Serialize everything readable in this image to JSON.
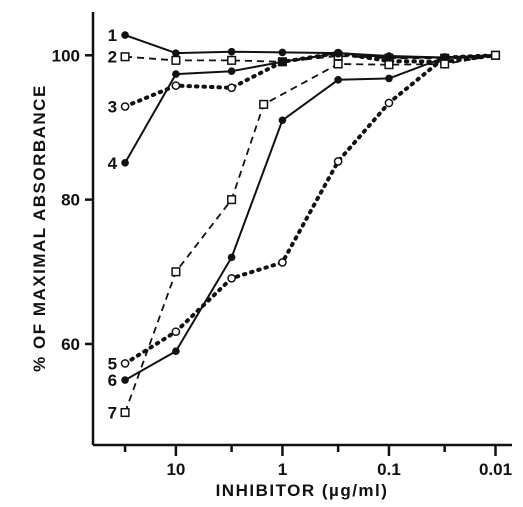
{
  "chart_data": {
    "type": "line",
    "title": "",
    "xlabel": "INHIBITOR (µg/ml)",
    "ylabel": "% OF MAXIMAL ABSORBANCE",
    "x_scale": "log",
    "x_reversed": true,
    "xlim": [
      60,
      0.007
    ],
    "ylim": [
      46,
      106
    ],
    "x_ticks": [
      {
        "value": 10,
        "label": "10"
      },
      {
        "value": 1,
        "label": "1"
      },
      {
        "value": 0.1,
        "label": "0.1"
      },
      {
        "value": 0.01,
        "label": "0.01"
      }
    ],
    "y_ticks": [
      {
        "value": 60,
        "label": "60"
      },
      {
        "value": 80,
        "label": "80"
      },
      {
        "value": 100,
        "label": "100"
      }
    ],
    "grid": false,
    "legend": "none",
    "series": [
      {
        "name": "1",
        "line": "solid",
        "marker": "filled-circle",
        "x": [
          30,
          10,
          3,
          1,
          0.3,
          0.1,
          0.03,
          0.01
        ],
        "y": [
          102.8,
          100.3,
          100.5,
          100.4,
          100.3,
          99.9,
          99.7,
          100
        ]
      },
      {
        "name": "2",
        "line": "dashed",
        "marker": "open-square",
        "x": [
          30,
          10,
          3,
          1,
          0.3,
          0.1,
          0.03,
          0.01
        ],
        "y": [
          99.8,
          99.3,
          99.3,
          99.1,
          99.9,
          99.6,
          99.6,
          100
        ]
      },
      {
        "name": "3",
        "line": "dotted",
        "marker": "open-circle",
        "x": [
          30,
          10,
          3,
          1,
          0.3,
          0.1,
          0.03,
          0.01
        ],
        "y": [
          92.9,
          95.8,
          95.5,
          99.1,
          100.3,
          99.2,
          99.1,
          100
        ]
      },
      {
        "name": "4",
        "line": "solid",
        "marker": "filled-circle",
        "x": [
          30,
          10,
          3,
          1,
          0.3,
          0.1,
          0.03,
          0.01
        ],
        "y": [
          85.1,
          97.4,
          97.8,
          99.1,
          100.3,
          99.7,
          99.7,
          100
        ]
      },
      {
        "name": "5",
        "line": "dotted",
        "marker": "open-circle",
        "x": [
          30,
          10,
          3,
          1,
          0.3,
          0.1,
          0.03,
          0.01
        ],
        "y": [
          57.3,
          61.7,
          69.1,
          71.3,
          85.3,
          93.4,
          99.7,
          100
        ]
      },
      {
        "name": "6",
        "line": "solid",
        "marker": "filled-circle",
        "x": [
          30,
          10,
          3,
          1,
          0.3,
          0.1,
          0.03,
          0.01
        ],
        "y": [
          55,
          59,
          72,
          91,
          96.6,
          96.8,
          99.7,
          100
        ]
      },
      {
        "name": "7",
        "line": "dashed",
        "marker": "open-square",
        "x": [
          30,
          10,
          3,
          1.5,
          0.3,
          0.1,
          0.03,
          0.01
        ],
        "y": [
          50.5,
          70,
          80,
          93.2,
          98.8,
          98.7,
          98.8,
          100
        ]
      }
    ]
  }
}
